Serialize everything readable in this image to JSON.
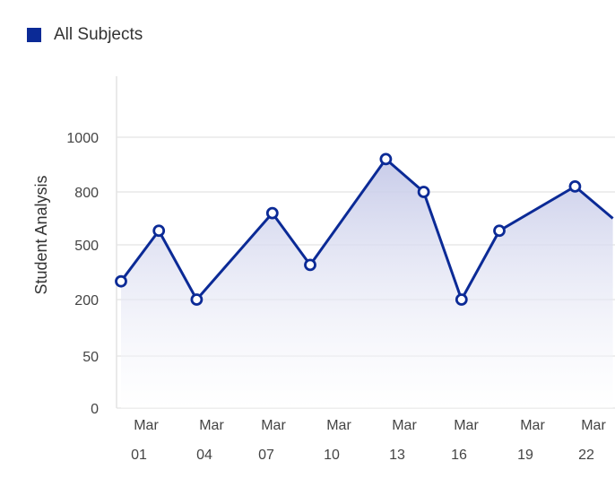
{
  "legend": {
    "label": "All Subjects",
    "color": "#0b2a96"
  },
  "colors": {
    "line": "#0b2a96",
    "fill": "#c9cde9",
    "grid": "#e4e4e4"
  },
  "chart_data": {
    "type": "area",
    "ylabel": "Student Analysis",
    "xlabel": "",
    "y_ticks": [
      "0",
      "50",
      "200",
      "500",
      "800",
      "1000"
    ],
    "ylim": [
      0,
      1000
    ],
    "x_tick_labels": [
      {
        "top": "Mar",
        "bottom": "01"
      },
      {
        "top": "Mar",
        "bottom": "04"
      },
      {
        "top": "Mar",
        "bottom": "07"
      },
      {
        "top": "Mar",
        "bottom": "10"
      },
      {
        "top": "Mar",
        "bottom": "13"
      },
      {
        "top": "Mar",
        "bottom": "16"
      },
      {
        "top": "Mar",
        "bottom": "19"
      },
      {
        "top": "Mar",
        "bottom": "22"
      }
    ],
    "series": [
      {
        "name": "All Subjects",
        "points": [
          {
            "x": "Mar 01",
            "y": 300
          },
          {
            "x": "Mar 02",
            "y": 580
          },
          {
            "x": "Mar 03",
            "y": 200
          },
          {
            "x": "Mar 05",
            "y": 680
          },
          {
            "x": "Mar 06",
            "y": 390
          },
          {
            "x": "Mar 08",
            "y": 920
          },
          {
            "x": "Mar 09",
            "y": 800
          },
          {
            "x": "Mar 10",
            "y": 200
          },
          {
            "x": "Mar 11",
            "y": 580
          },
          {
            "x": "Mar 13",
            "y": 820
          },
          {
            "x": "Mar 14",
            "y": 650
          }
        ]
      }
    ]
  }
}
